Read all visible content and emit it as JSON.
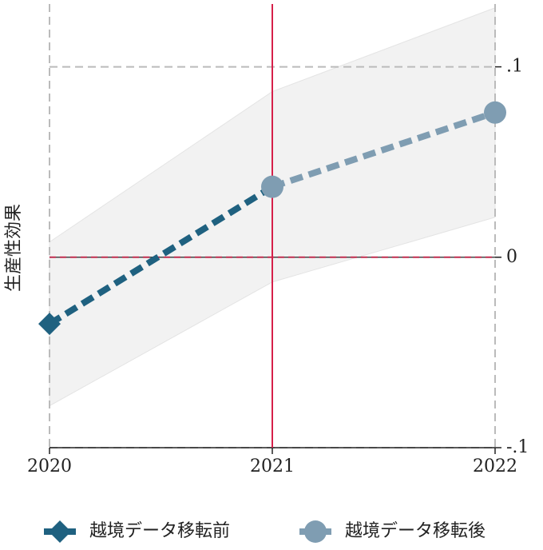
{
  "chart_data": {
    "type": "line",
    "y_label": "生産性効果",
    "x": [
      2020,
      2021,
      2022
    ],
    "xlim": [
      2020,
      2022
    ],
    "xticks": [
      2020,
      2021,
      2022
    ],
    "ylim": [
      -0.1,
      0.133
    ],
    "yticks": [
      {
        "value": -0.1,
        "label": "-.1"
      },
      0,
      {
        "value": 0.1,
        "label": ".1"
      }
    ],
    "grid": true,
    "vline": 2021,
    "hline": 0,
    "ref_color": "#d6204a",
    "band": {
      "lower": [
        -0.078,
        -0.013,
        0.021
      ],
      "upper": [
        0.008,
        0.087,
        0.131
      ],
      "color": "#f2f2f2"
    },
    "series": [
      {
        "name": "越境データ移転前",
        "color": "#1f6180",
        "marker": "diamond",
        "values": [
          -0.035,
          0.037,
          null
        ]
      },
      {
        "name": "越境データ移転後",
        "color": "#7f9db2",
        "marker": "circle",
        "values": [
          null,
          0.037,
          0.076
        ]
      }
    ],
    "legend": "bottom"
  }
}
